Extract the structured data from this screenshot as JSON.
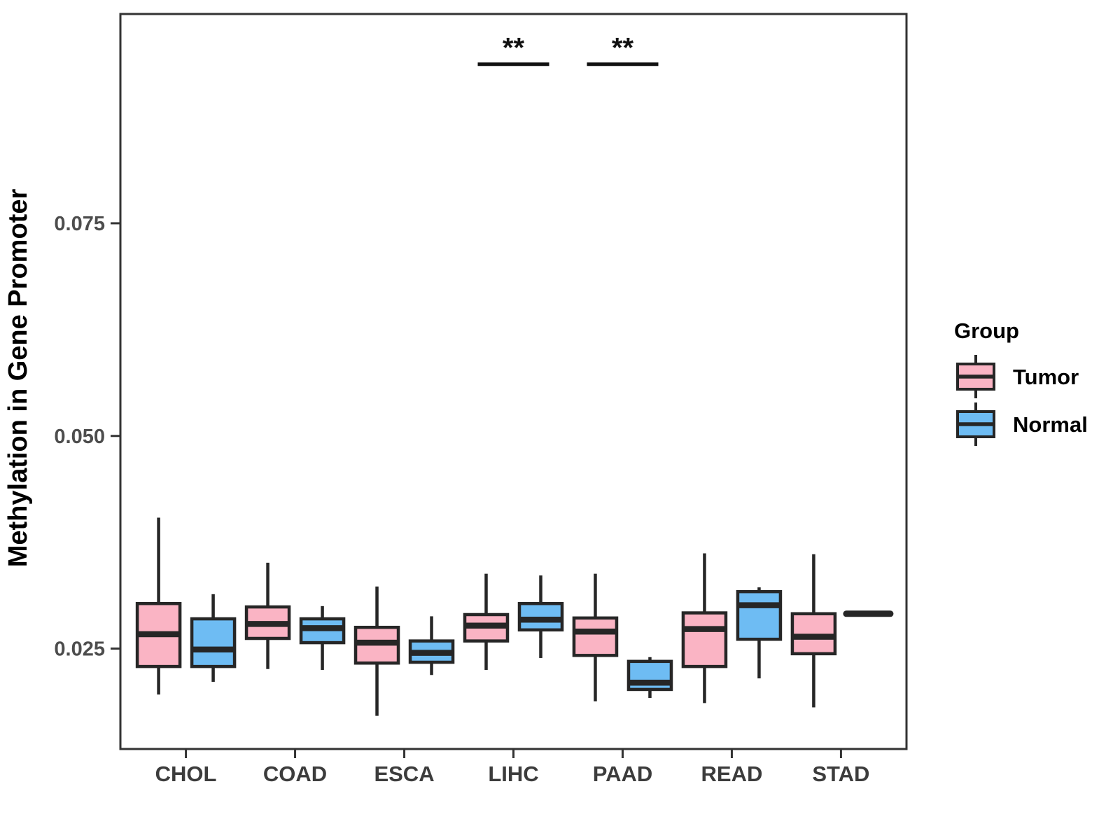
{
  "figure": {
    "background_color": "#FFFFFF",
    "panel_border_color": "#333333",
    "box_stroke_color": "#262626"
  },
  "axes": {
    "y_title": "Methylation in Gene Promoter",
    "y_tick_labels": [
      "0.025",
      "0.050",
      "0.075"
    ],
    "x_tick_labels": [
      "CHOL",
      "COAD",
      "ESCA",
      "LIHC",
      "PAAD",
      "READ",
      "STAD"
    ],
    "tick_label_color": "#4D4D4D"
  },
  "legend": {
    "title": "Group",
    "items": [
      {
        "label": "Tumor",
        "color": "#FAB4C4"
      },
      {
        "label": "Normal",
        "color": "#6EBCF3"
      }
    ]
  },
  "chart_data": {
    "type": "boxplot",
    "title": "",
    "xlabel": "",
    "ylabel": "Methylation in Gene Promoter",
    "categories": [
      "CHOL",
      "COAD",
      "ESCA",
      "LIHC",
      "PAAD",
      "READ",
      "STAD"
    ],
    "yticks": [
      0.025,
      0.05,
      0.075
    ],
    "ylim": [
      0.0132,
      0.0996
    ],
    "grid": false,
    "legend_position": "right",
    "series": [
      {
        "name": "Tumor",
        "color": "#FAB4C4",
        "stats_format": [
          "min",
          "q1",
          "median",
          "q3",
          "max"
        ],
        "stats": [
          [
            0.0196,
            0.0229,
            0.0267,
            0.0303,
            0.0404
          ],
          [
            0.0226,
            0.0262,
            0.0279,
            0.0299,
            0.0351
          ],
          [
            0.0171,
            0.0233,
            0.0257,
            0.0275,
            0.0323
          ],
          [
            0.0225,
            0.0259,
            0.0277,
            0.029,
            0.0338
          ],
          [
            0.0188,
            0.0242,
            0.027,
            0.0286,
            0.0338
          ],
          [
            0.0186,
            0.0229,
            0.0273,
            0.0292,
            0.0362
          ],
          [
            0.0181,
            0.0244,
            0.0264,
            0.0291,
            0.0361
          ]
        ]
      },
      {
        "name": "Normal",
        "color": "#6EBCF3",
        "stats_format": [
          "min",
          "q1",
          "median",
          "q3",
          "max"
        ],
        "stats": [
          [
            0.0211,
            0.0229,
            0.0249,
            0.0285,
            0.0314
          ],
          [
            0.0225,
            0.0257,
            0.0274,
            0.0285,
            0.03
          ],
          [
            0.0219,
            0.0234,
            0.0245,
            0.0259,
            0.0288
          ],
          [
            0.0239,
            0.0272,
            0.0284,
            0.0303,
            0.0336
          ],
          [
            0.0192,
            0.0202,
            0.021,
            0.0235,
            0.024
          ],
          [
            0.0215,
            0.0261,
            0.0301,
            0.0317,
            0.0322
          ],
          [
            0.0291,
            0.0291,
            0.0291,
            0.0291,
            0.0291
          ]
        ]
      }
    ],
    "significance": [
      {
        "category": "LIHC",
        "label": "**",
        "y": 0.0937
      },
      {
        "category": "PAAD",
        "label": "**",
        "y": 0.0937
      }
    ]
  }
}
